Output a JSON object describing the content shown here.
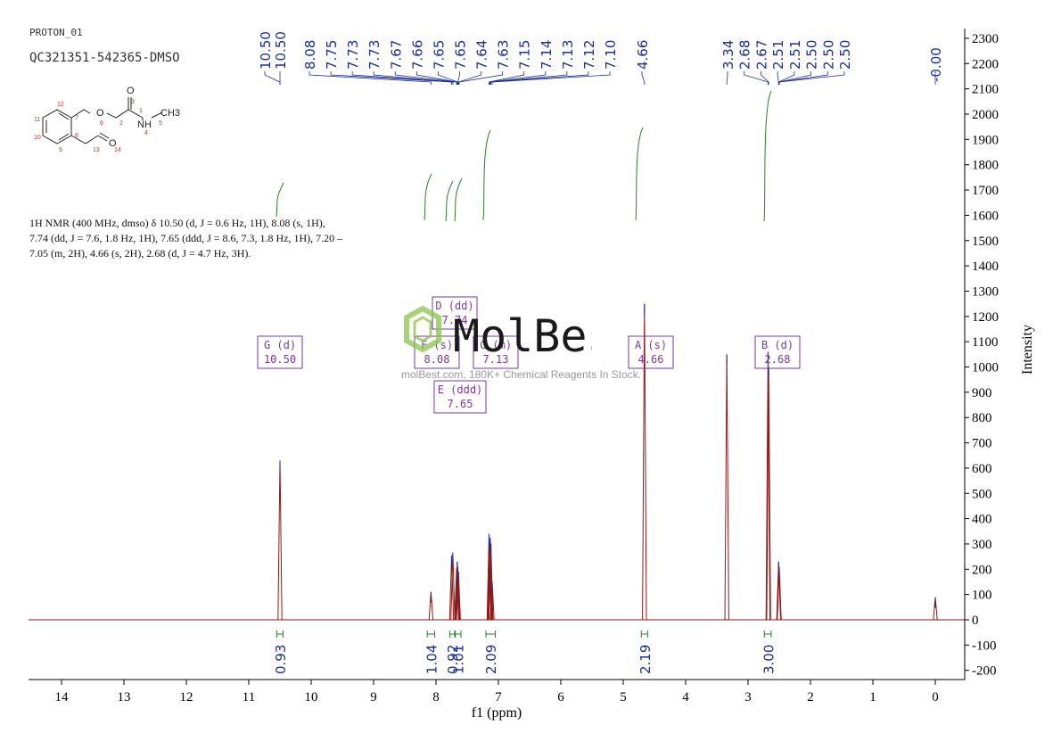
{
  "header": {
    "file_title": "PROTON_01",
    "sample_title": "QC321351-542365-DMSO"
  },
  "structure": {
    "atoms": [
      "O",
      "O",
      "NH",
      "CH3",
      "O"
    ],
    "numbers": [
      "1",
      "2",
      "3",
      "4",
      "5",
      "6",
      "7",
      "8",
      "9",
      "10",
      "11",
      "12",
      "13",
      "14"
    ]
  },
  "description": {
    "text": "1H NMR (400 MHz, dmso) δ 10.50 (d, J = 0.6 Hz, 1H), 8.08 (s, 1H), 7.74 (dd, J = 7.6, 1.8 Hz, 1H), 7.65 (ddd, J = 8.6, 7.3, 1.8 Hz, 1H), 7.20 – 7.05 (m, 2H), 4.66 (s, 2H), 2.68 (d, J = 4.7 Hz, 3H)."
  },
  "watermark": {
    "brand": "MolBest",
    "subtitle": "molBest.com, 180K+ Chemical Reagents In Stock."
  },
  "colors": {
    "spectrum": "#8b1a1a",
    "peak_labels": "#1f2f8f",
    "integration": "#2e7d2e",
    "multiplet_box": "#7a3a9a",
    "logo_green": "#8bc34a"
  },
  "chart_data": {
    "type": "line",
    "xlabel": "f1 (ppm)",
    "ylabel": "Intensity",
    "xlim": [
      14.5,
      -0.5
    ],
    "ylim": [
      -200,
      2350
    ],
    "x_ticks": [
      14,
      13,
      12,
      11,
      10,
      9,
      8,
      7,
      6,
      5,
      4,
      3,
      2,
      1,
      0
    ],
    "y_ticks": [
      -200,
      -100,
      0,
      100,
      200,
      300,
      400,
      500,
      600,
      700,
      800,
      900,
      1000,
      1100,
      1200,
      1300,
      1400,
      1500,
      1600,
      1700,
      1800,
      1900,
      2000,
      2100,
      2200,
      2300
    ],
    "peaks": [
      {
        "ppm": 10.5,
        "height": 630
      },
      {
        "ppm": 8.08,
        "height": 110
      },
      {
        "ppm": 7.75,
        "height": 255
      },
      {
        "ppm": 7.73,
        "height": 265
      },
      {
        "ppm": 7.67,
        "height": 200
      },
      {
        "ppm": 7.66,
        "height": 230
      },
      {
        "ppm": 7.65,
        "height": 210
      },
      {
        "ppm": 7.64,
        "height": 190
      },
      {
        "ppm": 7.15,
        "height": 340
      },
      {
        "ppm": 7.14,
        "height": 310
      },
      {
        "ppm": 7.13,
        "height": 325
      },
      {
        "ppm": 7.12,
        "height": 300
      },
      {
        "ppm": 7.1,
        "height": 150
      },
      {
        "ppm": 4.66,
        "height": 1250
      },
      {
        "ppm": 3.34,
        "height": 1050
      },
      {
        "ppm": 2.68,
        "height": 1060
      },
      {
        "ppm": 2.67,
        "height": 1000
      },
      {
        "ppm": 2.51,
        "height": 230
      },
      {
        "ppm": 2.5,
        "height": 210
      },
      {
        "ppm": 0.0,
        "height": 90
      }
    ],
    "peak_labels": [
      {
        "ppm": 10.5,
        "text": "10.50"
      },
      {
        "ppm": 10.5,
        "text": "10.50"
      },
      {
        "ppm": 8.08,
        "text": "8.08"
      },
      {
        "ppm": 7.75,
        "text": "7.75"
      },
      {
        "ppm": 7.73,
        "text": "7.73"
      },
      {
        "ppm": 7.73,
        "text": "7.73"
      },
      {
        "ppm": 7.67,
        "text": "7.67"
      },
      {
        "ppm": 7.66,
        "text": "7.66"
      },
      {
        "ppm": 7.65,
        "text": "7.65"
      },
      {
        "ppm": 7.65,
        "text": "7.65"
      },
      {
        "ppm": 7.64,
        "text": "7.64"
      },
      {
        "ppm": 7.63,
        "text": "7.63"
      },
      {
        "ppm": 7.15,
        "text": "7.15"
      },
      {
        "ppm": 7.14,
        "text": "7.14"
      },
      {
        "ppm": 7.13,
        "text": "7.13"
      },
      {
        "ppm": 7.12,
        "text": "7.12"
      },
      {
        "ppm": 7.1,
        "text": "7.10"
      },
      {
        "ppm": 4.66,
        "text": "4.66"
      },
      {
        "ppm": 3.34,
        "text": "3.34"
      },
      {
        "ppm": 2.68,
        "text": "2.68"
      },
      {
        "ppm": 2.67,
        "text": "2.67"
      },
      {
        "ppm": 2.51,
        "text": "2.51"
      },
      {
        "ppm": 2.51,
        "text": "2.51"
      },
      {
        "ppm": 2.5,
        "text": "2.50"
      },
      {
        "ppm": 2.5,
        "text": "2.50"
      },
      {
        "ppm": 2.5,
        "text": "2.50"
      },
      {
        "ppm": 0.0,
        "text": "-0.00"
      }
    ],
    "multiplets": [
      {
        "letter": "G",
        "type": "d",
        "shift": "10.50",
        "ppm": 10.5
      },
      {
        "letter": "D",
        "type": "dd",
        "shift": "7.74",
        "ppm": 7.74
      },
      {
        "letter": "F",
        "type": "s",
        "shift": "8.08",
        "ppm": 8.08
      },
      {
        "letter": "C",
        "type": "m",
        "shift": "7.13",
        "ppm": 7.13
      },
      {
        "letter": "E",
        "type": "ddd",
        "shift": "7.65",
        "ppm": 7.65
      },
      {
        "letter": "A",
        "type": "s",
        "shift": "4.66",
        "ppm": 4.66
      },
      {
        "letter": "B",
        "type": "d",
        "shift": "2.68",
        "ppm": 2.68
      }
    ],
    "integrals": [
      {
        "ppm": 10.5,
        "value": "0.93",
        "from": 10.55,
        "to": 10.45
      },
      {
        "ppm": 8.08,
        "value": "1.04",
        "from": 8.14,
        "to": 8.02
      },
      {
        "ppm": 7.74,
        "value": "0.92",
        "from": 7.78,
        "to": 7.7
      },
      {
        "ppm": 7.65,
        "value": "1.01",
        "from": 7.69,
        "to": 7.6
      },
      {
        "ppm": 7.13,
        "value": "2.09",
        "from": 7.2,
        "to": 7.05
      },
      {
        "ppm": 4.66,
        "value": "2.19",
        "from": 4.71,
        "to": 4.61
      },
      {
        "ppm": 2.68,
        "value": "3.00",
        "from": 2.74,
        "to": 2.63
      }
    ]
  }
}
